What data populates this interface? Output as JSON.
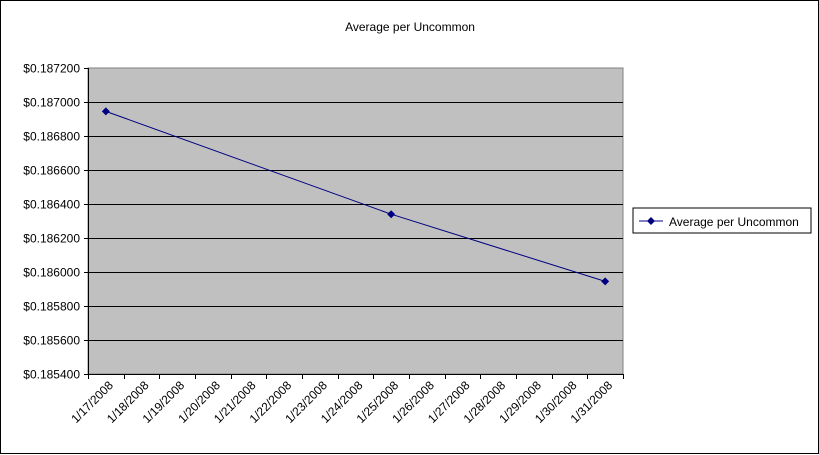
{
  "chart_data": {
    "type": "line",
    "title": "Average per Uncommon",
    "xlabel": "",
    "ylabel": "",
    "categories": [
      "1/17/2008",
      "1/18/2008",
      "1/19/2008",
      "1/20/2008",
      "1/21/2008",
      "1/22/2008",
      "1/23/2008",
      "1/24/2008",
      "1/25/2008",
      "1/26/2008",
      "1/27/2008",
      "1/28/2008",
      "1/29/2008",
      "1/30/2008",
      "1/31/2008"
    ],
    "series": [
      {
        "name": "Average per Uncommon",
        "color": "#000080",
        "points": [
          {
            "x": "1/17/2008",
            "y": 0.186945
          },
          {
            "x": "1/25/2008",
            "y": 0.18634
          },
          {
            "x": "1/31/2008",
            "y": 0.185945
          }
        ]
      }
    ],
    "ylim": [
      0.1854,
      0.1872
    ],
    "ytick_step": 0.0002,
    "ytick_labels": [
      "$0.185400",
      "$0.185600",
      "$0.185800",
      "$0.186000",
      "$0.186200",
      "$0.186400",
      "$0.186600",
      "$0.186800",
      "$0.187000",
      "$0.187200"
    ],
    "grid": true,
    "legend_position": "right",
    "plot_background": "#c0c0c0"
  }
}
